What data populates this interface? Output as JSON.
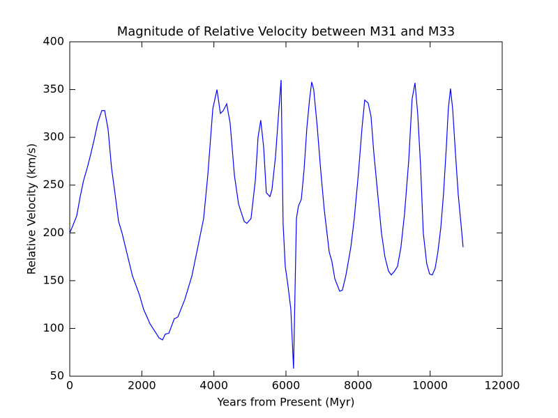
{
  "chart_data": {
    "type": "line",
    "title": "Magnitude of Relative Velocity between M31 and M33",
    "xlabel": "Years from Present (Myr)",
    "ylabel": "Relative Velocity (km/s)",
    "xlim": [
      0,
      12000
    ],
    "ylim": [
      50,
      400
    ],
    "xticks": [
      0,
      2000,
      4000,
      6000,
      8000,
      10000,
      12000
    ],
    "yticks": [
      50,
      100,
      150,
      200,
      250,
      300,
      350,
      400
    ],
    "x": [
      0,
      80,
      195,
      290,
      385,
      485,
      580,
      680,
      775,
      890,
      970,
      1065,
      1160,
      1260,
      1355,
      1450,
      1740,
      1935,
      2050,
      2225,
      2480,
      2575,
      2650,
      2750,
      2900,
      3000,
      3190,
      3390,
      3580,
      3715,
      3830,
      3970,
      4085,
      4180,
      4260,
      4355,
      4450,
      4570,
      4685,
      4840,
      4915,
      5030,
      5150,
      5225,
      5300,
      5380,
      5455,
      5555,
      5610,
      5710,
      5805,
      5865,
      5920,
      5980,
      6055,
      6135,
      6210,
      6290,
      6345,
      6425,
      6500,
      6580,
      6655,
      6715,
      6770,
      6870,
      6965,
      7060,
      7200,
      7275,
      7355,
      7490,
      7565,
      7660,
      7800,
      7895,
      8010,
      8110,
      8185,
      8280,
      8360,
      8435,
      8535,
      8650,
      8745,
      8845,
      8920,
      9015,
      9095,
      9190,
      9290,
      9405,
      9500,
      9580,
      9655,
      9735,
      9810,
      9905,
      9985,
      10060,
      10140,
      10215,
      10295,
      10370,
      10450,
      10505,
      10565,
      10625,
      10700,
      10780,
      10855,
      10915
    ],
    "series": [
      {
        "name": "Relative Velocity",
        "color": "#0000ff",
        "values": [
          200,
          207,
          218,
          238,
          255,
          268,
          282,
          298,
          315,
          328,
          328,
          308,
          268,
          240,
          212,
          200,
          155,
          135,
          120,
          105,
          90,
          88,
          94,
          95,
          110,
          112,
          130,
          155,
          190,
          215,
          260,
          330,
          350,
          325,
          328,
          335,
          315,
          260,
          230,
          212,
          210,
          215,
          255,
          300,
          318,
          290,
          242,
          238,
          245,
          280,
          330,
          360,
          210,
          165,
          145,
          120,
          58,
          215,
          228,
          235,
          265,
          310,
          340,
          358,
          350,
          310,
          265,
          225,
          180,
          170,
          152,
          139,
          140,
          155,
          185,
          215,
          262,
          310,
          339,
          336,
          322,
          285,
          245,
          200,
          175,
          160,
          156,
          160,
          165,
          185,
          220,
          275,
          340,
          357,
          325,
          270,
          200,
          168,
          157,
          156,
          163,
          180,
          205,
          240,
          290,
          330,
          351,
          330,
          285,
          240,
          210,
          185
        ]
      }
    ]
  }
}
